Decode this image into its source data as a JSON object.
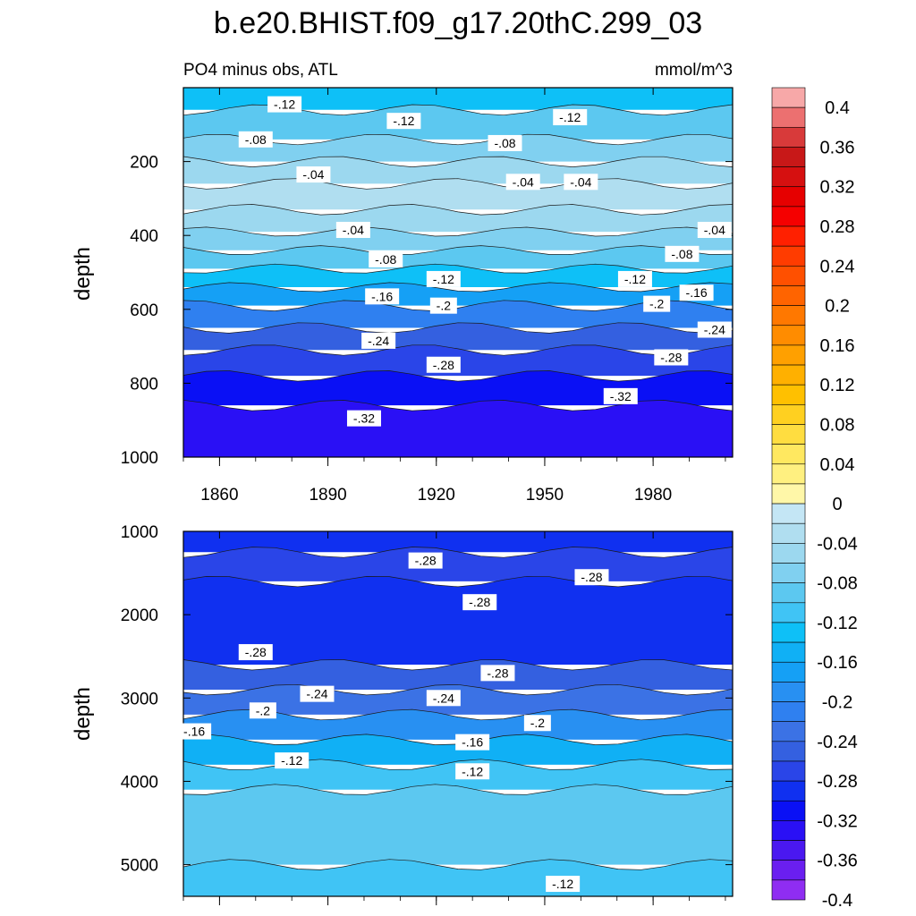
{
  "figure": {
    "title": "b.e20.BHIST.f09_g17.20thC.299_03"
  },
  "colors": {
    "levels": [
      -0.4,
      -0.38,
      -0.36,
      -0.34,
      -0.32,
      -0.3,
      -0.28,
      -0.26,
      -0.24,
      -0.22,
      -0.2,
      -0.18,
      -0.16,
      -0.14,
      -0.12,
      -0.1,
      -0.08,
      -0.06,
      -0.04,
      -0.02,
      0,
      0.02,
      0.04,
      0.06,
      0.08,
      0.1,
      0.12,
      0.14,
      0.16,
      0.18,
      0.2,
      0.22,
      0.24,
      0.26,
      0.28,
      0.3,
      0.32,
      0.34,
      0.36,
      0.38,
      0.4,
      0.42
    ],
    "fills": [
      "#8f2df2",
      "#6a1ff0",
      "#4a18f0",
      "#2a10f5",
      "#0a10f5",
      "#1030f0",
      "#2a45e8",
      "#3460e0",
      "#3b72e5",
      "#2f80f0",
      "#2890f2",
      "#15a0f5",
      "#10b0f5",
      "#0ec0f7",
      "#40c4f5",
      "#5cc8f0",
      "#80d0f0",
      "#9cd8ef",
      "#b0def0",
      "#c4e6f5",
      "#fff7a8",
      "#fff080",
      "#ffe860",
      "#ffdd40",
      "#ffd020",
      "#ffc000",
      "#ffb000",
      "#ffa000",
      "#ff8c00",
      "#ff7800",
      "#ff6400",
      "#ff5000",
      "#ff3c00",
      "#ff2000",
      "#f50000",
      "#e60000",
      "#d61010",
      "#c81818",
      "#d83a3a",
      "#ec7070",
      "#f7a8a8"
    ]
  },
  "chart_data": [
    {
      "type": "heatmap",
      "title": "PO4 minus obs, ATL",
      "units": "mmol/m^3",
      "xlabel": "",
      "ylabel": "depth",
      "x_ticks": [
        1860,
        1890,
        1920,
        1950,
        1980
      ],
      "y_ticks": [
        200,
        400,
        600,
        800,
        1000
      ],
      "ylim": [
        0,
        1000
      ],
      "y_reversed": true,
      "xlim": [
        1850,
        2002
      ],
      "contour_bands": [
        {
          "depth_top": 0,
          "depth_bottom": 60,
          "value": -0.13
        },
        {
          "depth_top": 60,
          "depth_bottom": 140,
          "value": -0.1
        },
        {
          "depth_top": 140,
          "depth_bottom": 200,
          "value": -0.07
        },
        {
          "depth_top": 200,
          "depth_bottom": 260,
          "value": -0.05
        },
        {
          "depth_top": 260,
          "depth_bottom": 330,
          "value": -0.03
        },
        {
          "depth_top": 330,
          "depth_bottom": 390,
          "value": -0.05
        },
        {
          "depth_top": 390,
          "depth_bottom": 440,
          "value": -0.07
        },
        {
          "depth_top": 440,
          "depth_bottom": 490,
          "value": -0.09
        },
        {
          "depth_top": 490,
          "depth_bottom": 540,
          "value": -0.13
        },
        {
          "depth_top": 540,
          "depth_bottom": 590,
          "value": -0.17
        },
        {
          "depth_top": 590,
          "depth_bottom": 650,
          "value": -0.21
        },
        {
          "depth_top": 650,
          "depth_bottom": 710,
          "value": -0.25
        },
        {
          "depth_top": 710,
          "depth_bottom": 780,
          "value": -0.27
        },
        {
          "depth_top": 780,
          "depth_bottom": 860,
          "value": -0.31
        },
        {
          "depth_top": 860,
          "depth_bottom": 1000,
          "value": -0.33
        }
      ],
      "contour_labels": [
        {
          "text": "-.12",
          "x": 1878,
          "depth": 45
        },
        {
          "text": "-.12",
          "x": 1911,
          "depth": 90
        },
        {
          "text": "-.12",
          "x": 1957,
          "depth": 80
        },
        {
          "text": "-.08",
          "x": 1870,
          "depth": 140
        },
        {
          "text": "-.08",
          "x": 1939,
          "depth": 150
        },
        {
          "text": "-.04",
          "x": 1886,
          "depth": 235
        },
        {
          "text": "-.04",
          "x": 1944,
          "depth": 255
        },
        {
          "text": "-.04",
          "x": 1960,
          "depth": 255
        },
        {
          "text": "-.04",
          "x": 1897,
          "depth": 385
        },
        {
          "text": "-.04",
          "x": 1997,
          "depth": 385
        },
        {
          "text": "-.08",
          "x": 1906,
          "depth": 465
        },
        {
          "text": "-.08",
          "x": 1988,
          "depth": 450
        },
        {
          "text": "-.12",
          "x": 1922,
          "depth": 518
        },
        {
          "text": "-.12",
          "x": 1975,
          "depth": 518
        },
        {
          "text": "-.16",
          "x": 1905,
          "depth": 565
        },
        {
          "text": "-.16",
          "x": 1992,
          "depth": 555
        },
        {
          "text": "-.2",
          "x": 1922,
          "depth": 590
        },
        {
          "text": "-.2",
          "x": 1981,
          "depth": 585
        },
        {
          "text": "-.24",
          "x": 1904,
          "depth": 685
        },
        {
          "text": "-.24",
          "x": 1997,
          "depth": 655
        },
        {
          "text": "-.28",
          "x": 1922,
          "depth": 750
        },
        {
          "text": "-.28",
          "x": 1985,
          "depth": 730
        },
        {
          "text": "-.32",
          "x": 1971,
          "depth": 835
        },
        {
          "text": "-.32",
          "x": 1900,
          "depth": 895
        }
      ]
    },
    {
      "type": "heatmap",
      "title": "",
      "xlabel": "",
      "ylabel": "depth",
      "x_ticks": [],
      "y_ticks": [
        1000,
        2000,
        3000,
        4000,
        5000
      ],
      "ylim": [
        1000,
        5380
      ],
      "y_reversed": true,
      "xlim": [
        1850,
        2002
      ],
      "contour_bands": [
        {
          "depth_top": 1000,
          "depth_bottom": 1250,
          "value": -0.3
        },
        {
          "depth_top": 1250,
          "depth_bottom": 1600,
          "value": -0.28
        },
        {
          "depth_top": 1600,
          "depth_bottom": 2600,
          "value": -0.29
        },
        {
          "depth_top": 2600,
          "depth_bottom": 2900,
          "value": -0.26
        },
        {
          "depth_top": 2900,
          "depth_bottom": 3200,
          "value": -0.23
        },
        {
          "depth_top": 3200,
          "depth_bottom": 3500,
          "value": -0.19
        },
        {
          "depth_top": 3500,
          "depth_bottom": 3800,
          "value": -0.15
        },
        {
          "depth_top": 3800,
          "depth_bottom": 4100,
          "value": -0.12
        },
        {
          "depth_top": 4100,
          "depth_bottom": 5000,
          "value": -0.09
        },
        {
          "depth_top": 5000,
          "depth_bottom": 5380,
          "value": -0.11
        }
      ],
      "contour_labels": [
        {
          "text": "-.28",
          "x": 1917,
          "depth": 1350
        },
        {
          "text": "-.28",
          "x": 1963,
          "depth": 1550
        },
        {
          "text": "-.28",
          "x": 1932,
          "depth": 1850
        },
        {
          "text": "-.28",
          "x": 1870,
          "depth": 2450
        },
        {
          "text": "-.28",
          "x": 1937,
          "depth": 2700
        },
        {
          "text": "-.24",
          "x": 1887,
          "depth": 2950
        },
        {
          "text": "-.24",
          "x": 1922,
          "depth": 3000
        },
        {
          "text": "-.2",
          "x": 1872,
          "depth": 3150
        },
        {
          "text": "-.2",
          "x": 1948,
          "depth": 3300
        },
        {
          "text": "-.16",
          "x": 1853,
          "depth": 3400
        },
        {
          "text": "-.16",
          "x": 1930,
          "depth": 3530
        },
        {
          "text": "-.12",
          "x": 1880,
          "depth": 3750
        },
        {
          "text": "-.12",
          "x": 1930,
          "depth": 3880
        },
        {
          "text": "-.12",
          "x": 1955,
          "depth": 5230
        }
      ]
    },
    {
      "type": "colorbar",
      "tick_labels": [
        "0.4",
        "0.36",
        "0.32",
        "0.28",
        "0.24",
        "0.2",
        "0.16",
        "0.12",
        "0.08",
        "0.04",
        "0",
        "-0.04",
        "-0.08",
        "-0.12",
        "-0.16",
        "-0.2",
        "-0.24",
        "-0.28",
        "-0.32",
        "-0.36",
        "-0.4"
      ],
      "tick_values": [
        0.4,
        0.36,
        0.32,
        0.28,
        0.24,
        0.2,
        0.16,
        0.12,
        0.08,
        0.04,
        0,
        -0.04,
        -0.08,
        -0.12,
        -0.16,
        -0.2,
        -0.24,
        -0.28,
        -0.32,
        -0.36,
        -0.4
      ]
    }
  ]
}
